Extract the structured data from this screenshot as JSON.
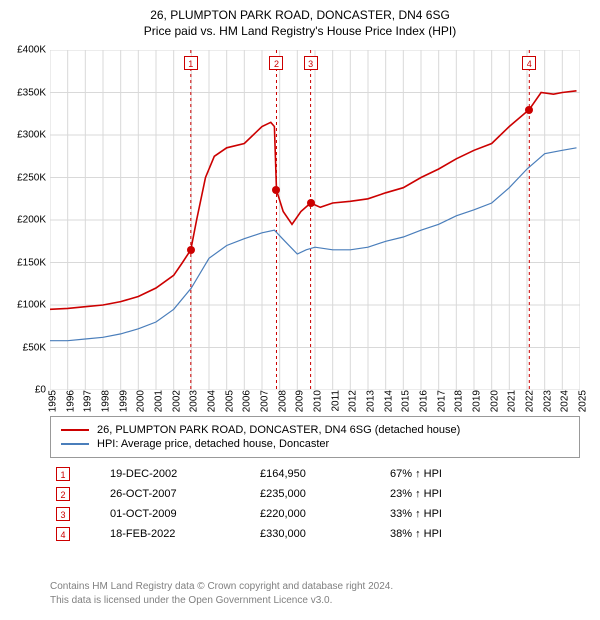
{
  "title": "26, PLUMPTON PARK ROAD, DONCASTER, DN4 6SG",
  "subtitle": "Price paid vs. HM Land Registry's House Price Index (HPI)",
  "chart": {
    "type": "line",
    "background_color": "#ffffff",
    "grid_color": "#d9d9d9",
    "axis_font_size": 10,
    "x": {
      "min": 1995,
      "max": 2025,
      "step": 1
    },
    "y": {
      "min": 0,
      "max": 400000,
      "step": 50000,
      "prefix": "£",
      "suffix": "K",
      "divisor": 1000
    },
    "series": [
      {
        "id": "property",
        "label": "26, PLUMPTON PARK ROAD, DONCASTER, DN4 6SG (detached house)",
        "color": "#cc0000",
        "line_width": 1.6,
        "points": [
          [
            1995.0,
            95000
          ],
          [
            1996.0,
            96000
          ],
          [
            1997.0,
            98000
          ],
          [
            1998.0,
            100000
          ],
          [
            1999.0,
            104000
          ],
          [
            2000.0,
            110000
          ],
          [
            2001.0,
            120000
          ],
          [
            2002.0,
            135000
          ],
          [
            2002.5,
            150000
          ],
          [
            2002.97,
            164950
          ],
          [
            2003.3,
            200000
          ],
          [
            2003.8,
            250000
          ],
          [
            2004.3,
            275000
          ],
          [
            2005.0,
            285000
          ],
          [
            2006.0,
            290000
          ],
          [
            2007.0,
            310000
          ],
          [
            2007.5,
            315000
          ],
          [
            2007.7,
            310000
          ],
          [
            2007.82,
            235000
          ],
          [
            2008.2,
            210000
          ],
          [
            2008.7,
            195000
          ],
          [
            2009.2,
            210000
          ],
          [
            2009.75,
            220000
          ],
          [
            2010.3,
            215000
          ],
          [
            2011.0,
            220000
          ],
          [
            2012.0,
            222000
          ],
          [
            2013.0,
            225000
          ],
          [
            2014.0,
            232000
          ],
          [
            2015.0,
            238000
          ],
          [
            2016.0,
            250000
          ],
          [
            2017.0,
            260000
          ],
          [
            2018.0,
            272000
          ],
          [
            2019.0,
            282000
          ],
          [
            2020.0,
            290000
          ],
          [
            2021.0,
            310000
          ],
          [
            2022.13,
            330000
          ],
          [
            2022.8,
            350000
          ],
          [
            2023.5,
            348000
          ],
          [
            2024.0,
            350000
          ],
          [
            2024.8,
            352000
          ]
        ]
      },
      {
        "id": "hpi",
        "label": "HPI: Average price, detached house, Doncaster",
        "color": "#4a7ebb",
        "line_width": 1.2,
        "points": [
          [
            1995.0,
            58000
          ],
          [
            1996.0,
            58000
          ],
          [
            1997.0,
            60000
          ],
          [
            1998.0,
            62000
          ],
          [
            1999.0,
            66000
          ],
          [
            2000.0,
            72000
          ],
          [
            2001.0,
            80000
          ],
          [
            2002.0,
            95000
          ],
          [
            2003.0,
            120000
          ],
          [
            2004.0,
            155000
          ],
          [
            2005.0,
            170000
          ],
          [
            2006.0,
            178000
          ],
          [
            2007.0,
            185000
          ],
          [
            2007.7,
            188000
          ],
          [
            2008.3,
            175000
          ],
          [
            2009.0,
            160000
          ],
          [
            2009.5,
            165000
          ],
          [
            2010.0,
            168000
          ],
          [
            2011.0,
            165000
          ],
          [
            2012.0,
            165000
          ],
          [
            2013.0,
            168000
          ],
          [
            2014.0,
            175000
          ],
          [
            2015.0,
            180000
          ],
          [
            2016.0,
            188000
          ],
          [
            2017.0,
            195000
          ],
          [
            2018.0,
            205000
          ],
          [
            2019.0,
            212000
          ],
          [
            2020.0,
            220000
          ],
          [
            2021.0,
            238000
          ],
          [
            2022.0,
            260000
          ],
          [
            2023.0,
            278000
          ],
          [
            2024.0,
            282000
          ],
          [
            2024.8,
            285000
          ]
        ]
      }
    ],
    "sale_markers": {
      "color": "#cc0000",
      "dash": "3,3",
      "label_top": 6,
      "items": [
        {
          "n": "1",
          "x": 2002.97,
          "y": 164950
        },
        {
          "n": "2",
          "x": 2007.82,
          "y": 235000
        },
        {
          "n": "3",
          "x": 2009.75,
          "y": 220000
        },
        {
          "n": "4",
          "x": 2022.13,
          "y": 330000
        }
      ]
    }
  },
  "legend": {
    "items": [
      {
        "color": "#cc0000",
        "label": "26, PLUMPTON PARK ROAD, DONCASTER, DN4 6SG (detached house)"
      },
      {
        "color": "#4a7ebb",
        "label": "HPI: Average price, detached house, Doncaster"
      }
    ]
  },
  "sales": [
    {
      "n": "1",
      "date": "19-DEC-2002",
      "price": "£164,950",
      "diff": "67% ↑ HPI"
    },
    {
      "n": "2",
      "date": "26-OCT-2007",
      "price": "£235,000",
      "diff": "23% ↑ HPI"
    },
    {
      "n": "3",
      "date": "01-OCT-2009",
      "price": "£220,000",
      "diff": "33% ↑ HPI"
    },
    {
      "n": "4",
      "date": "18-FEB-2022",
      "price": "£330,000",
      "diff": "38% ↑ HPI"
    }
  ],
  "footer": {
    "line1": "Contains HM Land Registry data © Crown copyright and database right 2024.",
    "line2": "This data is licensed under the Open Government Licence v3.0."
  }
}
